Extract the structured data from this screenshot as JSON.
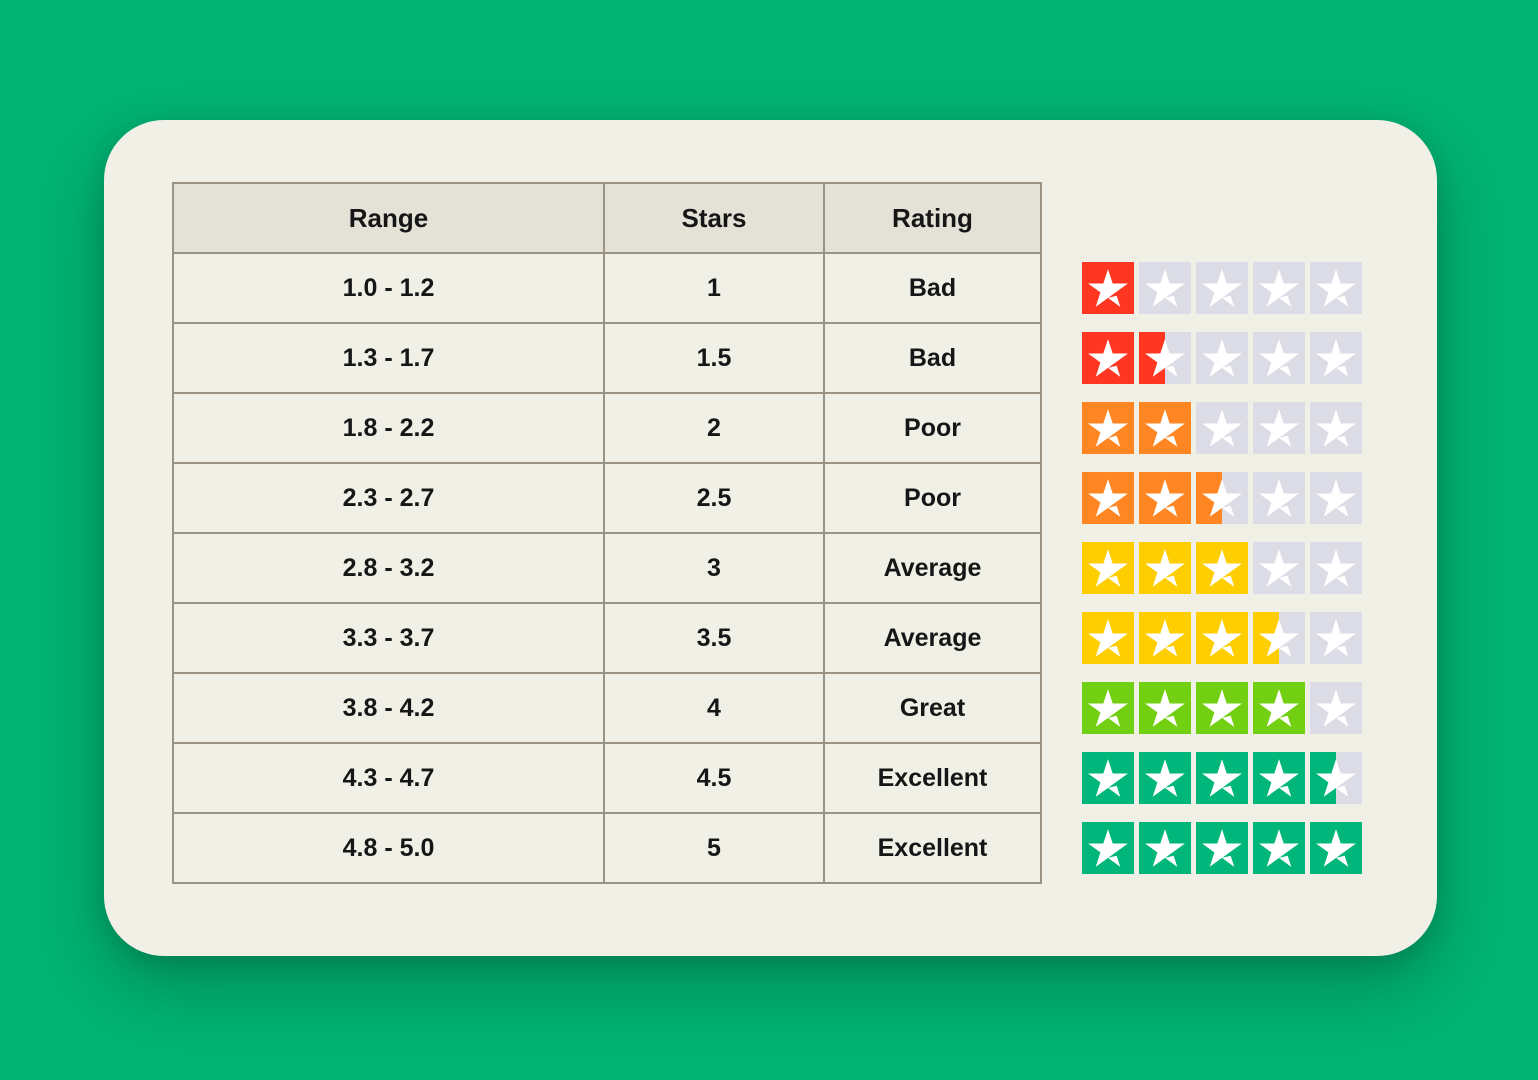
{
  "page": {
    "background_color": "#00b374",
    "card_color": "#f0f0e7"
  },
  "table": {
    "headers": [
      "Range",
      "Stars",
      "Rating"
    ],
    "header_bg": "#e4e2d6",
    "row_bg": "#f1f0e6",
    "border_color": "#9a9383",
    "rows": [
      {
        "range": "1.0 - 1.2",
        "stars": "1",
        "rating": "Bad",
        "star_value": 1,
        "star_color": "#ff3722"
      },
      {
        "range": "1.3 - 1.7",
        "stars": "1.5",
        "rating": "Bad",
        "star_value": 1.5,
        "star_color": "#ff3722"
      },
      {
        "range": "1.8 - 2.2",
        "stars": "2",
        "rating": "Poor",
        "star_value": 2,
        "star_color": "#ff8622"
      },
      {
        "range": "2.3 - 2.7",
        "stars": "2.5",
        "rating": "Poor",
        "star_value": 2.5,
        "star_color": "#ff8622"
      },
      {
        "range": "2.8 - 3.2",
        "stars": "3",
        "rating": "Average",
        "star_value": 3,
        "star_color": "#ffce00"
      },
      {
        "range": "3.3 - 3.7",
        "stars": "3.5",
        "rating": "Average",
        "star_value": 3.5,
        "star_color": "#ffce00"
      },
      {
        "range": "3.8 - 4.2",
        "stars": "4",
        "rating": "Great",
        "star_value": 4,
        "star_color": "#73cf11"
      },
      {
        "range": "4.3 - 4.7",
        "stars": "4.5",
        "rating": "Excellent",
        "star_value": 4.5,
        "star_color": "#00b67a"
      },
      {
        "range": "4.8 - 5.0",
        "stars": "5",
        "rating": "Excellent",
        "star_value": 5,
        "star_color": "#00b67a"
      }
    ]
  },
  "stars": {
    "max": 5,
    "empty_color": "#dcdce6",
    "glyph_color": "#ffffff"
  },
  "chart_data": {
    "type": "table",
    "columns": [
      "Range",
      "Stars",
      "Rating"
    ],
    "rows": [
      [
        "1.0 - 1.2",
        1,
        "Bad"
      ],
      [
        "1.3 - 1.7",
        1.5,
        "Bad"
      ],
      [
        "1.8 - 2.2",
        2,
        "Poor"
      ],
      [
        "2.3 - 2.7",
        2.5,
        "Poor"
      ],
      [
        "2.8 - 3.2",
        3,
        "Average"
      ],
      [
        "3.3 - 3.7",
        3.5,
        "Average"
      ],
      [
        "3.8 - 4.2",
        4,
        "Great"
      ],
      [
        "4.3 - 4.7",
        4.5,
        "Excellent"
      ],
      [
        "4.8 - 5.0",
        5,
        "Excellent"
      ]
    ],
    "star_scale_max": 5,
    "star_values_by_row": [
      1,
      1.5,
      2,
      2.5,
      3,
      3.5,
      4,
      4.5,
      5
    ],
    "star_colors_by_rating": {
      "Bad": "#ff3722",
      "Poor": "#ff8622",
      "Average": "#ffce00",
      "Great": "#73cf11",
      "Excellent": "#00b67a"
    },
    "empty_star_color": "#dcdce6"
  }
}
